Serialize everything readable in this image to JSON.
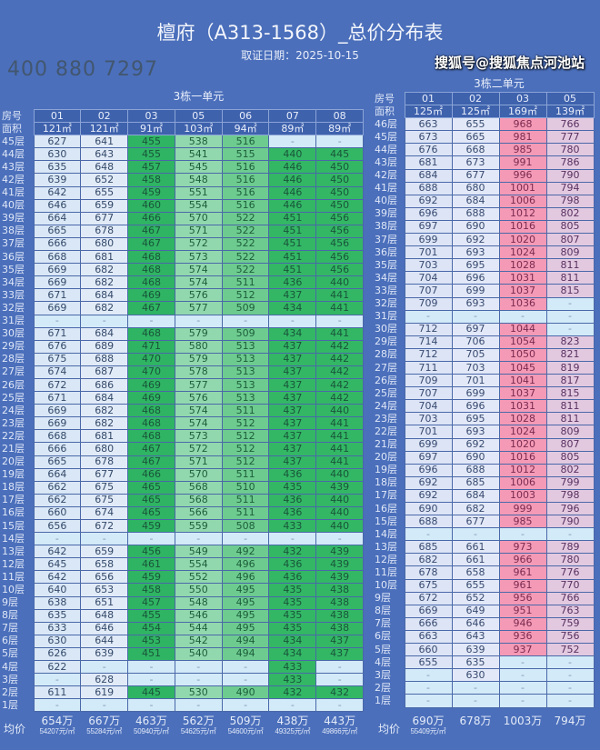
{
  "title": "檀府（A313-1568）_总价分布表",
  "subtitle": "取证日期：2025-10-15",
  "header_labels": {
    "room": "房号",
    "area": "面积",
    "avg": "均价"
  },
  "colors": {
    "background": "#4b6fbb",
    "green": "#2fb463",
    "pink": "#f59ab6"
  },
  "unit1": {
    "title": "3栋一单元",
    "rooms": [
      "01",
      "02",
      "03",
      "05",
      "06",
      "07",
      "08"
    ],
    "areas": [
      "121㎡",
      "121㎡",
      "91㎡",
      "103㎡",
      "94㎡",
      "89㎡",
      "89㎡"
    ],
    "rows": [
      [
        "45层",
        "627",
        "641",
        "455",
        "538",
        "516",
        "-",
        "-"
      ],
      [
        "44层",
        "630",
        "643",
        "455",
        "541",
        "515",
        "440",
        "445"
      ],
      [
        "43层",
        "635",
        "648",
        "457",
        "545",
        "516",
        "446",
        "450"
      ],
      [
        "42层",
        "639",
        "652",
        "458",
        "548",
        "516",
        "446",
        "450"
      ],
      [
        "41层",
        "642",
        "655",
        "459",
        "551",
        "516",
        "446",
        "450"
      ],
      [
        "40层",
        "646",
        "659",
        "460",
        "554",
        "516",
        "446",
        "450"
      ],
      [
        "39层",
        "664",
        "677",
        "466",
        "570",
        "522",
        "451",
        "456"
      ],
      [
        "38层",
        "665",
        "678",
        "467",
        "571",
        "522",
        "451",
        "456"
      ],
      [
        "37层",
        "666",
        "680",
        "467",
        "572",
        "522",
        "451",
        "456"
      ],
      [
        "36层",
        "668",
        "681",
        "468",
        "573",
        "522",
        "451",
        "456"
      ],
      [
        "35层",
        "669",
        "682",
        "468",
        "574",
        "522",
        "451",
        "456"
      ],
      [
        "34层",
        "669",
        "682",
        "468",
        "574",
        "511",
        "436",
        "440"
      ],
      [
        "33层",
        "671",
        "684",
        "469",
        "576",
        "512",
        "437",
        "441"
      ],
      [
        "32层",
        "669",
        "682",
        "467",
        "577",
        "509",
        "434",
        "441"
      ],
      [
        "31层",
        "-",
        "-",
        "-",
        "-",
        "-",
        "-",
        "-"
      ],
      [
        "30层",
        "671",
        "684",
        "468",
        "579",
        "509",
        "434",
        "441"
      ],
      [
        "29层",
        "676",
        "689",
        "471",
        "580",
        "513",
        "437",
        "442"
      ],
      [
        "28层",
        "675",
        "688",
        "470",
        "579",
        "513",
        "437",
        "442"
      ],
      [
        "27层",
        "674",
        "687",
        "470",
        "578",
        "513",
        "437",
        "442"
      ],
      [
        "26层",
        "672",
        "686",
        "469",
        "577",
        "513",
        "437",
        "442"
      ],
      [
        "25层",
        "671",
        "684",
        "469",
        "576",
        "513",
        "437",
        "442"
      ],
      [
        "24层",
        "669",
        "682",
        "468",
        "574",
        "511",
        "437",
        "440"
      ],
      [
        "23层",
        "669",
        "682",
        "468",
        "574",
        "512",
        "437",
        "441"
      ],
      [
        "22层",
        "668",
        "681",
        "468",
        "573",
        "512",
        "437",
        "441"
      ],
      [
        "21层",
        "666",
        "680",
        "467",
        "572",
        "512",
        "437",
        "441"
      ],
      [
        "20层",
        "665",
        "678",
        "467",
        "571",
        "512",
        "437",
        "441"
      ],
      [
        "19层",
        "664",
        "677",
        "466",
        "570",
        "511",
        "436",
        "440"
      ],
      [
        "18层",
        "662",
        "675",
        "465",
        "568",
        "510",
        "435",
        "439"
      ],
      [
        "17层",
        "662",
        "675",
        "465",
        "568",
        "511",
        "436",
        "440"
      ],
      [
        "16层",
        "660",
        "674",
        "465",
        "566",
        "511",
        "436",
        "440"
      ],
      [
        "15层",
        "656",
        "672",
        "459",
        "559",
        "508",
        "433",
        "440"
      ],
      [
        "14层",
        "-",
        "-",
        "-",
        "-",
        "-",
        "-",
        "-"
      ],
      [
        "13层",
        "642",
        "659",
        "456",
        "549",
        "492",
        "432",
        "439"
      ],
      [
        "12层",
        "645",
        "658",
        "461",
        "554",
        "496",
        "436",
        "439"
      ],
      [
        "11层",
        "642",
        "656",
        "459",
        "552",
        "496",
        "436",
        "439"
      ],
      [
        "10层",
        "640",
        "653",
        "458",
        "550",
        "495",
        "435",
        "438"
      ],
      [
        "9层",
        "638",
        "651",
        "457",
        "548",
        "495",
        "435",
        "438"
      ],
      [
        "8层",
        "635",
        "648",
        "455",
        "546",
        "495",
        "435",
        "438"
      ],
      [
        "7层",
        "633",
        "646",
        "454",
        "544",
        "495",
        "435",
        "438"
      ],
      [
        "6层",
        "630",
        "644",
        "453",
        "542",
        "494",
        "434",
        "437"
      ],
      [
        "5层",
        "626",
        "639",
        "451",
        "540",
        "494",
        "434",
        "437"
      ],
      [
        "4层",
        "622",
        "-",
        "-",
        "-",
        "-",
        "433",
        "-"
      ],
      [
        "3层",
        "-",
        "628",
        "-",
        "-",
        "-",
        "433",
        "-"
      ],
      [
        "2层",
        "611",
        "619",
        "445",
        "530",
        "490",
        "432",
        "432"
      ],
      [
        "1层",
        "-",
        "-",
        "-",
        "-",
        "-",
        "-",
        "-"
      ]
    ],
    "averages": [
      {
        "total": "654万",
        "per_sqm": "54207元/㎡"
      },
      {
        "total": "667万",
        "per_sqm": "55284元/㎡"
      },
      {
        "total": "463万",
        "per_sqm": "50940元/㎡"
      },
      {
        "total": "562万",
        "per_sqm": "54625元/㎡"
      },
      {
        "total": "509万",
        "per_sqm": "54600元/㎡"
      },
      {
        "total": "438万",
        "per_sqm": "49325元/㎡"
      },
      {
        "total": "443万",
        "per_sqm": "49866元/㎡"
      }
    ]
  },
  "unit2": {
    "title": "3栋二单元",
    "rooms": [
      "01",
      "02",
      "03",
      "05"
    ],
    "areas": [
      "125㎡",
      "125㎡",
      "169㎡",
      "139㎡"
    ],
    "rows": [
      [
        "46层",
        "663",
        "655",
        "968",
        "766"
      ],
      [
        "45层",
        "673",
        "665",
        "981",
        "777"
      ],
      [
        "44层",
        "676",
        "668",
        "985",
        "780"
      ],
      [
        "43层",
        "681",
        "673",
        "991",
        "786"
      ],
      [
        "42层",
        "684",
        "677",
        "996",
        "790"
      ],
      [
        "41层",
        "688",
        "680",
        "1001",
        "794"
      ],
      [
        "40层",
        "692",
        "684",
        "1006",
        "798"
      ],
      [
        "39层",
        "696",
        "688",
        "1012",
        "802"
      ],
      [
        "38层",
        "697",
        "690",
        "1016",
        "805"
      ],
      [
        "37层",
        "699",
        "692",
        "1020",
        "807"
      ],
      [
        "36层",
        "701",
        "693",
        "1024",
        "809"
      ],
      [
        "35层",
        "703",
        "695",
        "1028",
        "811"
      ],
      [
        "34层",
        "704",
        "696",
        "1031",
        "811"
      ],
      [
        "33层",
        "707",
        "699",
        "1037",
        "815"
      ],
      [
        "32层",
        "709",
        "693",
        "1036",
        "-"
      ],
      [
        "31层",
        "-",
        "-",
        "-",
        "-"
      ],
      [
        "30层",
        "712",
        "697",
        "1044",
        "-"
      ],
      [
        "29层",
        "714",
        "706",
        "1054",
        "823"
      ],
      [
        "28层",
        "712",
        "705",
        "1050",
        "821"
      ],
      [
        "27层",
        "711",
        "703",
        "1045",
        "819"
      ],
      [
        "26层",
        "709",
        "701",
        "1041",
        "817"
      ],
      [
        "25层",
        "707",
        "699",
        "1037",
        "815"
      ],
      [
        "24层",
        "704",
        "696",
        "1031",
        "811"
      ],
      [
        "23层",
        "703",
        "695",
        "1028",
        "811"
      ],
      [
        "22层",
        "701",
        "693",
        "1024",
        "809"
      ],
      [
        "21层",
        "699",
        "692",
        "1020",
        "807"
      ],
      [
        "20层",
        "697",
        "690",
        "1016",
        "805"
      ],
      [
        "19层",
        "696",
        "688",
        "1012",
        "802"
      ],
      [
        "18层",
        "692",
        "685",
        "1006",
        "799"
      ],
      [
        "17层",
        "692",
        "684",
        "1003",
        "798"
      ],
      [
        "16层",
        "690",
        "682",
        "999",
        "796"
      ],
      [
        "15层",
        "688",
        "677",
        "985",
        "790"
      ],
      [
        "14层",
        "-",
        "-",
        "-",
        "-"
      ],
      [
        "13层",
        "685",
        "661",
        "973",
        "789"
      ],
      [
        "12层",
        "682",
        "661",
        "966",
        "780"
      ],
      [
        "11层",
        "678",
        "658",
        "961",
        "776"
      ],
      [
        "10层",
        "675",
        "655",
        "961",
        "770"
      ],
      [
        "9层",
        "672",
        "652",
        "956",
        "766"
      ],
      [
        "8层",
        "669",
        "649",
        "951",
        "763"
      ],
      [
        "7层",
        "666",
        "646",
        "946",
        "759"
      ],
      [
        "6层",
        "663",
        "643",
        "936",
        "756"
      ],
      [
        "5层",
        "660",
        "639",
        "937",
        "752"
      ],
      [
        "4层",
        "655",
        "635",
        "-",
        "-"
      ],
      [
        "3层",
        "-",
        "630",
        "-",
        "-"
      ],
      [
        "2层",
        "-",
        "-",
        "-",
        "-"
      ],
      [
        "1层",
        "-",
        "-",
        "-",
        "-"
      ]
    ],
    "averages": [
      {
        "total": "690万",
        "per_sqm": "55409元/㎡"
      },
      {
        "total": "678万",
        "per_sqm": ""
      },
      {
        "total": "1003万",
        "per_sqm": ""
      },
      {
        "total": "794万",
        "per_sqm": ""
      }
    ]
  },
  "watermarks": {
    "phone": "400 880 7297",
    "source": "搜狐号@搜狐焦点河池站"
  }
}
